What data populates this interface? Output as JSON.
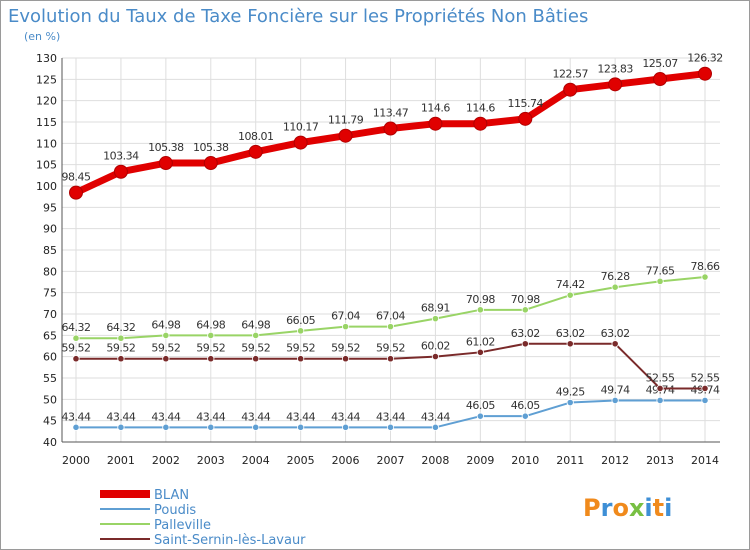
{
  "chart_data": {
    "type": "line",
    "title": "Evolution du Taux de Taxe Foncière sur les Propriétés Non Bâties",
    "subtitle": "(en %)",
    "x": [
      "2000",
      "2001",
      "2002",
      "2003",
      "2004",
      "2005",
      "2006",
      "2007",
      "2008",
      "2009",
      "2010",
      "2011",
      "2012",
      "2013",
      "2014"
    ],
    "ylim": [
      40,
      130
    ],
    "yticks": [
      40,
      45,
      50,
      55,
      60,
      65,
      70,
      75,
      80,
      85,
      90,
      95,
      100,
      105,
      110,
      115,
      120,
      125,
      130
    ],
    "grid": true,
    "legend_position": "bottom-left",
    "series": [
      {
        "name": "BLAN",
        "color": "#e00000",
        "values": [
          98.45,
          103.34,
          105.38,
          105.38,
          108.01,
          110.17,
          111.79,
          113.47,
          114.6,
          114.6,
          115.74,
          122.57,
          123.83,
          125.07,
          126.32
        ],
        "labels": [
          "98.45",
          "103.34",
          "105.38",
          "105.38",
          "108.01",
          "110.17",
          "111.79",
          "113.47",
          "114.6",
          "114.6",
          "115.74",
          "122.57",
          "123.83",
          "125.07",
          "126.32"
        ]
      },
      {
        "name": "Poudis",
        "color": "#5f9fd3",
        "values": [
          43.44,
          43.44,
          43.44,
          43.44,
          43.44,
          43.44,
          43.44,
          43.44,
          43.44,
          46.05,
          46.05,
          49.25,
          49.74,
          49.74,
          49.74
        ],
        "labels": [
          "43.44",
          "43.44",
          "43.44",
          "43.44",
          "43.44",
          "43.44",
          "43.44",
          "43.44",
          "43.44",
          "46.05",
          "46.05",
          "49.25",
          "49.74",
          "49.74",
          "49.74"
        ]
      },
      {
        "name": "Palleville",
        "color": "#99d466",
        "values": [
          64.32,
          64.32,
          64.98,
          64.98,
          64.98,
          66.05,
          67.04,
          67.04,
          68.91,
          70.98,
          70.98,
          74.42,
          76.28,
          77.65,
          78.66
        ],
        "labels": [
          "64.32",
          "64.32",
          "64.98",
          "64.98",
          "64.98",
          "66.05",
          "67.04",
          "67.04",
          "68.91",
          "70.98",
          "70.98",
          "74.42",
          "76.28",
          "77.65",
          "78.66"
        ]
      },
      {
        "name": "Saint-Sernin-lès-Lavaur",
        "color": "#7a2a2a",
        "values": [
          59.52,
          59.52,
          59.52,
          59.52,
          59.52,
          59.52,
          59.52,
          59.52,
          60.02,
          61.02,
          63.02,
          63.02,
          63.02,
          52.55,
          52.55
        ],
        "labels": [
          "59.52",
          "59.52",
          "59.52",
          "59.52",
          "59.52",
          "59.52",
          "59.52",
          "59.52",
          "60.02",
          "61.02",
          "63.02",
          "63.02",
          "63.02",
          "52.55",
          "52.55"
        ]
      }
    ]
  },
  "logo": {
    "text": "Proxiti"
  }
}
